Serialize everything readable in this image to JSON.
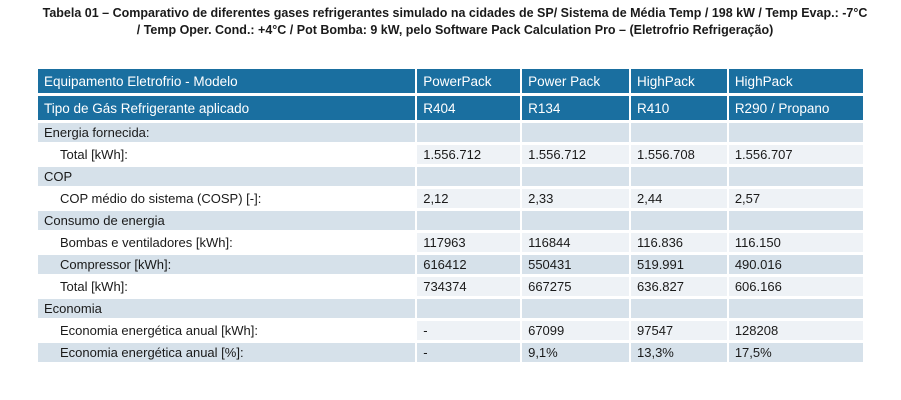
{
  "caption": {
    "line1": "Tabela 01 – Comparativo de diferentes gases refrigerantes simulado na cidades de SP/ Sistema de Média Temp / 198 kW / Temp Evap.: -7°C",
    "line2": "/ Temp Oper. Cond.: +4°C / Pot Bomba: 9 kW, pelo Software Pack Calculation Pro – (Eletrofrio Refrigeração)"
  },
  "header": {
    "col0_line1": "Equipamento Eletrofrio - Modelo",
    "col0_line2": "Tipo de Gás Refrigerante aplicado",
    "models": [
      {
        "name": "PowerPack",
        "gas": "R404"
      },
      {
        "name": "Power Pack",
        "gas": "R134"
      },
      {
        "name": "HighPack",
        "gas": "R410"
      },
      {
        "name": "HighPack",
        "gas": "R290 / Propano"
      }
    ]
  },
  "sections": [
    {
      "title": "Energia fornecida:",
      "rows": [
        {
          "label": "Total [kWh]:",
          "values": [
            "1.556.712",
            "1.556.712",
            "1.556.708",
            "1.556.707"
          ]
        }
      ]
    },
    {
      "title": "COP",
      "rows": [
        {
          "label": "COP médio do sistema (COSP) [-]:",
          "values": [
            "2,12",
            "2,33",
            "2,44",
            "2,57"
          ]
        }
      ]
    },
    {
      "title": "Consumo de energia",
      "rows": [
        {
          "label": "Bombas e ventiladores [kWh]:",
          "values": [
            "117963",
            "116844",
            "116.836",
            "116.150"
          ]
        },
        {
          "label": "Compressor [kWh]:",
          "values": [
            "616412",
            "550431",
            "519.991",
            "490.016"
          ]
        },
        {
          "label": "Total [kWh]:",
          "values": [
            "734374",
            "667275",
            "636.827",
            "606.166"
          ]
        }
      ]
    },
    {
      "title": "Economia",
      "rows": [
        {
          "label": "Economia energética anual [kWh]:",
          "values": [
            "-",
            "67099",
            "97547",
            "128208"
          ]
        },
        {
          "label": "Economia energética anual [%]:",
          "values": [
            "-",
            "9,1%",
            "13,3%",
            "17,5%"
          ]
        }
      ]
    }
  ],
  "colors": {
    "header_bg": "#1a6fa0",
    "section_bg": "#d6e1ea",
    "row_bg": "#eef2f6"
  }
}
